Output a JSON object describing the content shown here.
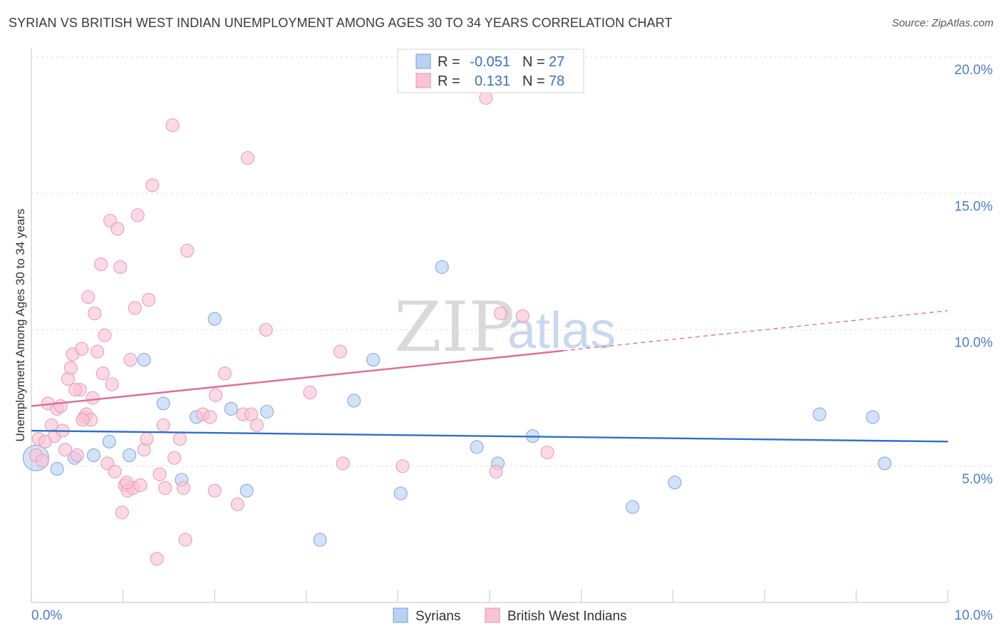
{
  "chart_data": {
    "type": "scatter",
    "title": "SYRIAN VS BRITISH WEST INDIAN UNEMPLOYMENT AMONG AGES 30 TO 34 YEARS CORRELATION CHART",
    "source": "Source: ZipAtlas.com",
    "ylabel": "Unemployment Among Ages 30 to 34 years",
    "xlabel": "",
    "xlim": [
      0,
      10
    ],
    "ylim": [
      0,
      20
    ],
    "x_tick_labels": {
      "min": "0.0%",
      "max": "10.0%"
    },
    "y_ticks": [
      5,
      10,
      15,
      20
    ],
    "y_tick_labels": [
      "5.0%",
      "10.0%",
      "15.0%",
      "20.0%"
    ],
    "grid": true,
    "watermark": {
      "zip": "ZIP",
      "atlas": "atlas"
    },
    "legend": {
      "r_label": "R =",
      "n_label": "N =",
      "entries": [
        {
          "name": "Syrians",
          "r": "-0.051",
          "n": "27"
        },
        {
          "name": "British West Indians",
          "r": "0.131",
          "n": "78"
        }
      ]
    },
    "series": [
      {
        "name": "Syrians",
        "fill": "#b9d1f2",
        "stroke": "#86abe0",
        "line_color": "#2f6fcf",
        "trend": {
          "x0": 0.0,
          "y0": 6.3,
          "x1": 10.0,
          "y1": 5.9,
          "solid_until": 10.0
        },
        "points": [
          [
            0.05,
            5.3,
            1
          ],
          [
            0.28,
            4.9,
            0
          ],
          [
            0.47,
            5.3,
            0
          ],
          [
            0.68,
            5.4,
            0
          ],
          [
            0.85,
            5.9,
            0
          ],
          [
            1.07,
            5.4,
            0
          ],
          [
            1.23,
            8.9,
            0
          ],
          [
            1.44,
            7.3,
            0
          ],
          [
            1.64,
            4.5,
            0
          ],
          [
            1.8,
            6.8,
            0
          ],
          [
            2.0,
            10.4,
            0
          ],
          [
            2.18,
            7.1,
            0
          ],
          [
            2.35,
            4.1,
            0
          ],
          [
            2.57,
            7.0,
            0
          ],
          [
            3.15,
            2.3,
            0
          ],
          [
            3.52,
            7.4,
            0
          ],
          [
            3.73,
            8.9,
            0
          ],
          [
            4.03,
            4.0,
            0
          ],
          [
            4.48,
            12.3,
            0
          ],
          [
            4.86,
            5.7,
            0
          ],
          [
            5.09,
            5.1,
            0
          ],
          [
            5.47,
            6.1,
            0
          ],
          [
            6.56,
            3.5,
            0
          ],
          [
            7.02,
            4.4,
            0
          ],
          [
            8.6,
            6.9,
            0
          ],
          [
            9.18,
            6.8,
            0
          ],
          [
            9.31,
            5.1,
            0
          ]
        ]
      },
      {
        "name": "British West Indians",
        "fill": "#f8c3d5",
        "stroke": "#ec9cb8",
        "line_color": "#e06a96",
        "trend": {
          "x0": 0.0,
          "y0": 7.2,
          "x1": 10.0,
          "y1": 10.7,
          "solid_until": 5.8
        },
        "points": [
          [
            0.05,
            5.4,
            0
          ],
          [
            0.08,
            6.0,
            0
          ],
          [
            0.12,
            5.2,
            0
          ],
          [
            0.18,
            7.3,
            0
          ],
          [
            0.22,
            6.5,
            0
          ],
          [
            0.25,
            6.1,
            0
          ],
          [
            0.28,
            7.1,
            0
          ],
          [
            0.34,
            6.3,
            0
          ],
          [
            0.37,
            5.6,
            0
          ],
          [
            0.4,
            8.2,
            0
          ],
          [
            0.43,
            8.6,
            0
          ],
          [
            0.45,
            9.1,
            0
          ],
          [
            0.5,
            5.4,
            0
          ],
          [
            0.53,
            7.8,
            0
          ],
          [
            0.55,
            9.3,
            0
          ],
          [
            0.58,
            6.8,
            0
          ],
          [
            0.6,
            6.9,
            0
          ],
          [
            0.62,
            11.2,
            0
          ],
          [
            0.65,
            6.7,
            0
          ],
          [
            0.67,
            7.5,
            0
          ],
          [
            0.69,
            10.6,
            0
          ],
          [
            0.72,
            9.2,
            0
          ],
          [
            0.76,
            12.4,
            0
          ],
          [
            0.78,
            8.4,
            0
          ],
          [
            0.8,
            9.8,
            0
          ],
          [
            0.83,
            5.1,
            0
          ],
          [
            0.86,
            14.0,
            0
          ],
          [
            0.88,
            8.0,
            0
          ],
          [
            0.91,
            4.8,
            0
          ],
          [
            0.94,
            13.7,
            0
          ],
          [
            0.97,
            12.3,
            0
          ],
          [
            0.99,
            3.3,
            0
          ],
          [
            1.02,
            4.3,
            0
          ],
          [
            1.05,
            4.1,
            0
          ],
          [
            1.08,
            8.9,
            0
          ],
          [
            1.11,
            4.2,
            0
          ],
          [
            1.13,
            10.8,
            0
          ],
          [
            1.16,
            14.2,
            0
          ],
          [
            1.19,
            4.3,
            0
          ],
          [
            1.23,
            5.6,
            0
          ],
          [
            1.26,
            6.0,
            0
          ],
          [
            1.28,
            11.1,
            0
          ],
          [
            1.32,
            15.3,
            0
          ],
          [
            1.37,
            1.6,
            0
          ],
          [
            1.4,
            4.7,
            0
          ],
          [
            1.44,
            6.5,
            0
          ],
          [
            1.46,
            4.2,
            0
          ],
          [
            1.54,
            17.5,
            0
          ],
          [
            1.56,
            5.3,
            0
          ],
          [
            1.62,
            6.0,
            0
          ],
          [
            1.66,
            4.2,
            0
          ],
          [
            1.7,
            12.9,
            0
          ],
          [
            1.68,
            2.3,
            0
          ],
          [
            1.87,
            6.9,
            0
          ],
          [
            2.0,
            4.1,
            0
          ],
          [
            2.01,
            7.6,
            0
          ],
          [
            2.11,
            8.4,
            0
          ],
          [
            2.25,
            3.6,
            0
          ],
          [
            2.31,
            6.9,
            0
          ],
          [
            2.36,
            16.3,
            0
          ],
          [
            2.4,
            6.9,
            0
          ],
          [
            2.46,
            6.5,
            0
          ],
          [
            2.56,
            10.0,
            0
          ],
          [
            3.04,
            7.7,
            0
          ],
          [
            3.37,
            9.2,
            0
          ],
          [
            3.4,
            5.1,
            0
          ],
          [
            4.05,
            5.0,
            0
          ],
          [
            4.96,
            18.5,
            0
          ],
          [
            5.07,
            4.8,
            0
          ],
          [
            5.12,
            10.6,
            0
          ],
          [
            5.36,
            10.5,
            0
          ],
          [
            5.63,
            5.5,
            0
          ],
          [
            0.32,
            7.2,
            0
          ],
          [
            0.15,
            5.9,
            0
          ],
          [
            0.56,
            6.7,
            0
          ],
          [
            1.04,
            4.4,
            0
          ],
          [
            1.95,
            6.8,
            0
          ],
          [
            0.48,
            7.8,
            0
          ]
        ]
      }
    ]
  }
}
